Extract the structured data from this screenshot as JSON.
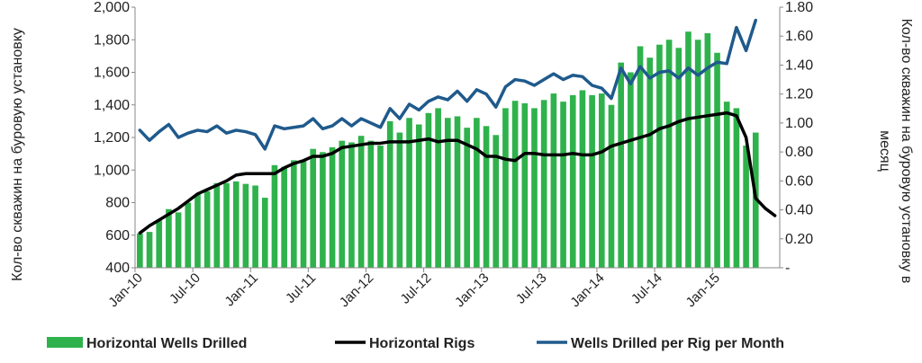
{
  "chart_data": {
    "type": "bar",
    "ylabel_left": "Кол-во скважин на буровую установку",
    "ylabel_right": "Кол-во скважин на буровую установку в месяц",
    "left_axis": {
      "ylim": [
        400,
        2000
      ],
      "ticks": [
        "400",
        "600",
        "800",
        "1,000",
        "1,200",
        "1,400",
        "1,600",
        "1,800",
        "2,000"
      ]
    },
    "right_axis": {
      "ylim": [
        0,
        1.8
      ],
      "ticks": [
        "-",
        "0.20",
        "0.40",
        "0.60",
        "0.80",
        "1.00",
        "1.20",
        "1.40",
        "1.60",
        "1.80"
      ]
    },
    "x_tick_labels": [
      "Jan-10",
      "Jul-10",
      "Jan-11",
      "Jul-11",
      "Jan-12",
      "Jul-12",
      "Jan-13",
      "Jul-13",
      "Jan-14",
      "Jul-14",
      "Jan-15"
    ],
    "grid": false,
    "legend_position": "bottom",
    "series": [
      {
        "name": "Horizontal Wells Drilled",
        "kind": "bar",
        "axis": "left",
        "color": "#2fb24c",
        "values": [
          610,
          620,
          690,
          760,
          740,
          800,
          850,
          870,
          920,
          920,
          930,
          915,
          905,
          830,
          1030,
          1020,
          1060,
          1060,
          1130,
          1110,
          1140,
          1180,
          1170,
          1210,
          1180,
          1150,
          1300,
          1230,
          1320,
          1280,
          1350,
          1380,
          1320,
          1330,
          1260,
          1320,
          1270,
          1215,
          1380,
          1425,
          1410,
          1380,
          1430,
          1470,
          1420,
          1460,
          1490,
          1460,
          1470,
          1400,
          1660,
          1600,
          1760,
          1690,
          1770,
          1800,
          1750,
          1850,
          1800,
          1840,
          1720,
          1420,
          1380,
          1150,
          1230
        ]
      },
      {
        "name": "Horizontal Rigs",
        "kind": "line",
        "axis": "right",
        "color": "#000000",
        "values": [
          0.24,
          0.29,
          0.33,
          0.37,
          0.41,
          0.46,
          0.51,
          0.54,
          0.57,
          0.6,
          0.64,
          0.65,
          0.65,
          0.65,
          0.65,
          0.69,
          0.72,
          0.74,
          0.77,
          0.77,
          0.79,
          0.83,
          0.84,
          0.85,
          0.86,
          0.86,
          0.87,
          0.87,
          0.87,
          0.88,
          0.89,
          0.87,
          0.88,
          0.88,
          0.85,
          0.82,
          0.77,
          0.77,
          0.75,
          0.74,
          0.79,
          0.79,
          0.78,
          0.78,
          0.78,
          0.79,
          0.78,
          0.78,
          0.8,
          0.84,
          0.86,
          0.88,
          0.9,
          0.92,
          0.96,
          0.98,
          1.01,
          1.03,
          1.04,
          1.05,
          1.06,
          1.07,
          1.05,
          0.9,
          0.48,
          0.41,
          0.36
        ]
      },
      {
        "name": "Wells Drilled per Rig per Month",
        "kind": "line",
        "axis": "right",
        "color": "#1f5a8c",
        "values": [
          0.95,
          0.88,
          0.94,
          0.99,
          0.9,
          0.93,
          0.95,
          0.94,
          0.98,
          0.93,
          0.95,
          0.94,
          0.92,
          0.82,
          0.98,
          0.96,
          0.97,
          0.98,
          1.03,
          0.96,
          0.98,
          1.03,
          0.98,
          1.03,
          1.0,
          0.97,
          1.1,
          1.03,
          1.13,
          1.09,
          1.15,
          1.18,
          1.16,
          1.22,
          1.15,
          1.23,
          1.2,
          1.11,
          1.25,
          1.3,
          1.29,
          1.26,
          1.3,
          1.34,
          1.3,
          1.33,
          1.32,
          1.26,
          1.24,
          1.17,
          1.38,
          1.27,
          1.39,
          1.31,
          1.35,
          1.36,
          1.31,
          1.38,
          1.33,
          1.38,
          1.42,
          1.41,
          1.66,
          1.5,
          1.71
        ]
      }
    ]
  }
}
